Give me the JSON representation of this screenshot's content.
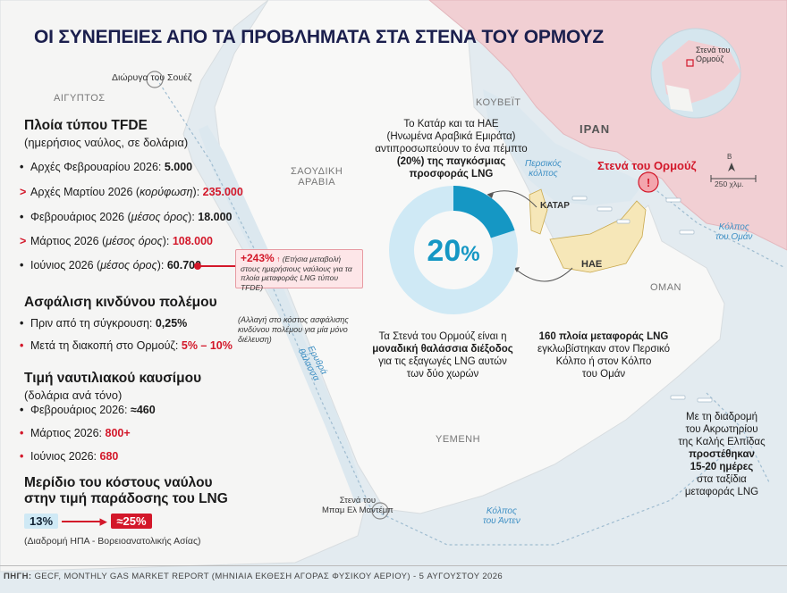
{
  "title": "ΟΙ ΣΥΝΕΠΕΙΕΣ ΑΠΟ ΤΑ ΠΡΟΒΛΗΜΑΤΑ ΣΤΑ ΣΤΕΝΑ ΤΟΥ ΟΡΜΟΥΖ",
  "map_labels": {
    "egypt": "ΑΙΓΥΠΤΟΣ",
    "suez": "Διώρυγα του Σουέζ",
    "saudi": "ΣΑΟΥΔΙΚΗ\nΑΡΑΒΙΑ",
    "kuwait": "ΚΟΥΒΕΪΤ",
    "iran": "ΙΡΑΝ",
    "qatar": "ΚΑΤΑΡ",
    "uae": "ΗΑΕ",
    "oman": "ΟΜΑΝ",
    "yemen": "ΥΕΜΕΝΗ",
    "persian_gulf": "Περσικός\nκόλπος",
    "gulf_oman": "Κόλπος\nτου Ομάν",
    "red_sea": "Ερυθρά\nθάλασσα",
    "gulf_aden": "Κόλπος\nτου Άντεν",
    "bab_el_mandeb": "Στενά του\nΜπαμ Ελ Μαντέμπ",
    "hormuz": "Στενά του Ορμούζ",
    "globe_hormuz": "Στενά του\nΟρμούζ",
    "scale": "250 χλμ.",
    "north": "Β"
  },
  "tfde": {
    "title": "Πλοία τύπου TFDE",
    "subtitle": "(ημερήσιος ναύλος, σε δολάρια)",
    "rows": [
      {
        "marker": "•",
        "label": "Αρχές Φεβρουαρίου 2026: ",
        "value": "5.000"
      },
      {
        "marker": ">",
        "label": "Αρχές Μαρτίου 2026 (",
        "italic": "κορύφωση",
        "label2": "): ",
        "value": "235.000"
      },
      {
        "marker": "•",
        "label": "Φεβρουάριος 2026 (",
        "italic": "μέσος όρος",
        "label2": "): ",
        "value": "18.000"
      },
      {
        "marker": ">",
        "label": "Μάρτιος 2026 (",
        "italic": "μέσος όρος",
        "label2": "): ",
        "value": "108.000"
      },
      {
        "marker": "•",
        "label": "Ιούνιος 2026 (",
        "italic": "μέσος όρος",
        "label2": "): ",
        "value": "60.700"
      }
    ],
    "callout_value": "+243%",
    "callout_text": "(Ετήσια μεταβολή στους ημερήσιους ναύλους για τα πλοία μεταφοράς LNG τύπου TFDE)"
  },
  "insurance": {
    "title": "Ασφάλιση κινδύνου πολέμου",
    "rows": [
      {
        "marker": "•",
        "label": "Πριν από τη σύγκρουση: ",
        "value": "0,25%"
      },
      {
        "marker": "•",
        "label": "Μετά τη διακοπή στο Ορμούζ: ",
        "value": "5% – 10%"
      }
    ],
    "note": "(Αλλαγή στο κόστος ασφάλισης κινδύνου πολέμου για μία μόνο διέλευση)"
  },
  "fuel": {
    "title": "Τιμή ναυτιλιακού καυσίμου",
    "subtitle": "(δολάρια ανά τόνο)",
    "rows": [
      {
        "marker": "•",
        "label": "Φεβρουάριος 2026: ",
        "value": "≈460"
      },
      {
        "marker": "•",
        "label": "Μάρτιος 2026: ",
        "value": "800+"
      },
      {
        "marker": "•",
        "label": "Ιούνιος 2026: ",
        "value": "680"
      }
    ]
  },
  "share": {
    "title": "Μερίδιο του κόστους ναύλου\nστην τιμή παράδοσης του LNG",
    "from": "13%",
    "to": "≈25%",
    "route": "(Διαδρομή ΗΠΑ - Βορειοανατολικής Ασίας)"
  },
  "donut": {
    "percent": 20,
    "label": "20",
    "suffix": "%",
    "main_color": "#1597c4",
    "rest_color": "#cfe9f5",
    "text_top": "Το Κατάρ και τα ΗΑΕ\n(Ηνωμένα Αραβικά Εμιράτα)\nαντιπροσωπεύουν το ένα πέμπτο",
    "text_bold1": "(20%)",
    "text_mid": " της παγκόσμιας",
    "text_bold2": "προσφοράς LNG"
  },
  "hormuz_info": {
    "line1": "Τα Στενά του Ορμούζ είναι η",
    "bold": "μοναδική θαλάσσια διέξοδος",
    "line3": "για τις εξαγωγές LNG αυτών\nτων δύο χωρών"
  },
  "ships_info": {
    "bold": "160 πλοία μεταφοράς LNG",
    "rest": "εγκλωβίστηκαν στον Περσικό\nΚόλπο ή στον Κόλπο\nτου Ομάν"
  },
  "cape_info": {
    "line1": "Με τη διαδρομή\nτου Ακρωτηρίου\nτης Καλής Ελπίδας",
    "bold": "προστέθηκαν\n15-20 ημέρες",
    "line3": "στα ταξίδια\nμεταφοράς LNG"
  },
  "footer": {
    "label": "ΠΗΓΗ: ",
    "text": "GECF, MONTHLY GAS MARKET REPORT (ΜΗΝΙΑΙΑ ΕΚΘΕΣΗ ΑΓΟΡΑΣ ΦΥΣΙΚΟΥ ΑΕΡΙΟΥ) - 5 ΑΥΓΟΥΣΤΟΥ 2026"
  },
  "colors": {
    "red": "#d3182a",
    "iran": "#f1cfd3",
    "qatar_uae": "#f6e7b8",
    "water": "#e6eef3",
    "land": "#f7f7f6",
    "title": "#1b1f4d"
  }
}
